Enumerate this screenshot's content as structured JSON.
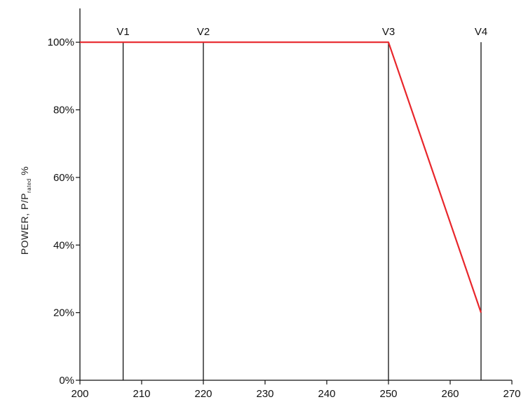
{
  "chart_data": {
    "type": "line",
    "x_ticks": [
      200,
      210,
      220,
      230,
      240,
      250,
      260,
      270
    ],
    "y_ticks": [
      0,
      20,
      40,
      60,
      80,
      100
    ],
    "y_tick_labels": [
      "0%",
      "20%",
      "40%",
      "60%",
      "80%",
      "100%"
    ],
    "xlim": [
      200,
      270
    ],
    "ylim": [
      0,
      110
    ],
    "ylabel": {
      "main": "POWER,  P/P",
      "subscript": "rated",
      "suffix": " %"
    },
    "xlabel": "",
    "grid": false,
    "series": [
      {
        "color": "#e8262b",
        "x": [
          200,
          250,
          265
        ],
        "y": [
          100,
          100,
          20
        ]
      }
    ],
    "vertical_markers": [
      {
        "label": "V1",
        "x": 207,
        "ymax": 100
      },
      {
        "label": "V2",
        "x": 220,
        "ymax": 100
      },
      {
        "label": "V3",
        "x": 250,
        "ymax": 100
      },
      {
        "label": "V4",
        "x": 265,
        "ymax": 100
      }
    ],
    "colors": {
      "axis": "#111111",
      "marker_line": "#111111",
      "series": "#e8262b"
    }
  }
}
